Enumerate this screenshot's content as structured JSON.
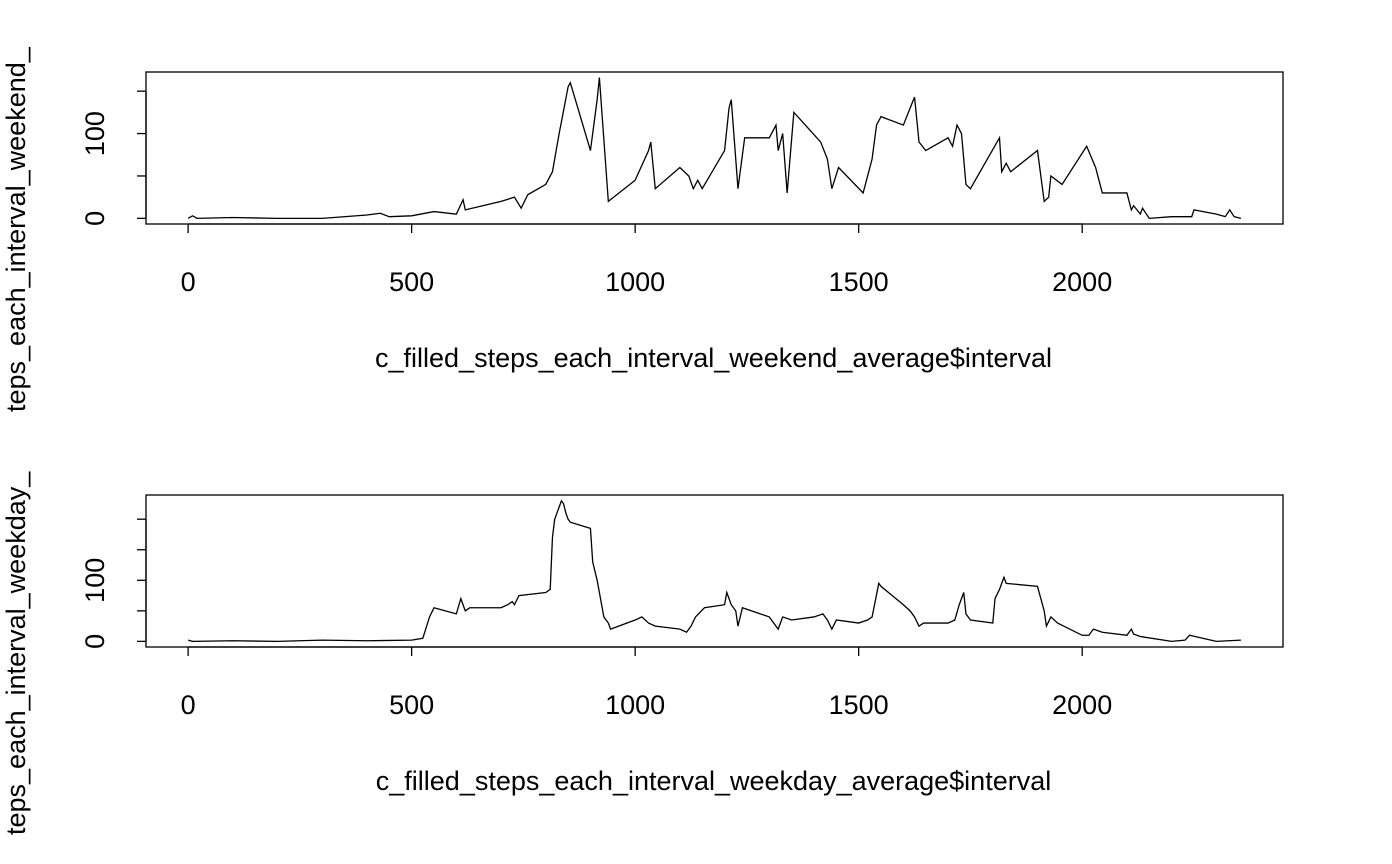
{
  "chart_data": [
    {
      "type": "line",
      "x_label": "c_filled_steps_each_interval_weekend_average$interval",
      "y_label": "teps_each_interval_weekend_",
      "x": [
        0,
        10,
        20,
        100,
        200,
        300,
        400,
        430,
        450,
        500,
        550,
        600,
        615,
        620,
        700,
        730,
        745,
        760,
        800,
        815,
        830,
        850,
        855,
        900,
        915,
        920,
        940,
        1000,
        1030,
        1035,
        1045,
        1100,
        1120,
        1130,
        1140,
        1150,
        1200,
        1210,
        1215,
        1230,
        1245,
        1300,
        1315,
        1320,
        1330,
        1340,
        1355,
        1415,
        1430,
        1440,
        1455,
        1510,
        1530,
        1540,
        1550,
        1600,
        1615,
        1625,
        1635,
        1650,
        1700,
        1710,
        1720,
        1730,
        1740,
        1750,
        1815,
        1820,
        1830,
        1840,
        1900,
        1915,
        1925,
        1930,
        1955,
        2010,
        2030,
        2045,
        2100,
        2110,
        2115,
        2130,
        2135,
        2150,
        2200,
        2245,
        2250,
        2300,
        2320,
        2330,
        2340,
        2355
      ],
      "series": [
        {
          "color": "#000000",
          "values": [
            0,
            3,
            0,
            1,
            0,
            0,
            4,
            6,
            2,
            3,
            8,
            5,
            22,
            10,
            20,
            25,
            12,
            28,
            40,
            55,
            100,
            155,
            160,
            80,
            140,
            166,
            20,
            45,
            80,
            90,
            35,
            60,
            50,
            35,
            45,
            35,
            80,
            130,
            140,
            35,
            95,
            95,
            110,
            80,
            100,
            30,
            125,
            90,
            70,
            35,
            60,
            30,
            70,
            110,
            120,
            110,
            130,
            143,
            90,
            80,
            95,
            85,
            110,
            100,
            40,
            35,
            95,
            55,
            65,
            55,
            80,
            20,
            25,
            50,
            40,
            85,
            60,
            30,
            30,
            10,
            15,
            5,
            12,
            0,
            2,
            2,
            10,
            5,
            2,
            10,
            2,
            0
          ]
        }
      ],
      "xlim": [
        -94.2,
        2449.2
      ],
      "ylim": [
        -6.64,
        172.6
      ],
      "xticks": [
        0,
        500,
        1000,
        1500,
        2000
      ],
      "yticks": [
        0,
        100
      ],
      "yticks_minor": [
        50,
        150
      ]
    },
    {
      "type": "line",
      "x_label": "c_filled_steps_each_interval_weekday_average$interval",
      "y_label": "teps_each_interval_weekday_",
      "x": [
        0,
        10,
        100,
        200,
        300,
        400,
        500,
        525,
        540,
        550,
        600,
        610,
        615,
        620,
        630,
        700,
        715,
        725,
        730,
        740,
        800,
        810,
        815,
        820,
        830,
        835,
        840,
        845,
        850,
        855,
        900,
        905,
        915,
        920,
        930,
        940,
        945,
        1000,
        1015,
        1030,
        1045,
        1100,
        1115,
        1125,
        1135,
        1155,
        1200,
        1205,
        1215,
        1225,
        1230,
        1240,
        1300,
        1320,
        1330,
        1350,
        1400,
        1420,
        1430,
        1440,
        1450,
        1500,
        1520,
        1530,
        1545,
        1550,
        1600,
        1615,
        1625,
        1635,
        1645,
        1700,
        1715,
        1725,
        1735,
        1740,
        1750,
        1800,
        1805,
        1815,
        1825,
        1830,
        1900,
        1915,
        1920,
        1930,
        1945,
        2000,
        2015,
        2025,
        2045,
        2100,
        2110,
        2115,
        2130,
        2200,
        2230,
        2240,
        2300,
        2355
      ],
      "series": [
        {
          "color": "#000000",
          "values": [
            2,
            0,
            1,
            0,
            2,
            1,
            2,
            5,
            40,
            55,
            45,
            70,
            60,
            50,
            55,
            55,
            60,
            65,
            60,
            75,
            80,
            85,
            170,
            200,
            220,
            230,
            225,
            210,
            200,
            195,
            185,
            130,
            100,
            80,
            40,
            30,
            20,
            35,
            40,
            30,
            25,
            20,
            15,
            25,
            40,
            55,
            60,
            80,
            60,
            50,
            25,
            55,
            40,
            20,
            40,
            35,
            40,
            45,
            35,
            20,
            35,
            30,
            35,
            40,
            95,
            90,
            60,
            50,
            40,
            25,
            30,
            30,
            35,
            60,
            80,
            45,
            35,
            30,
            70,
            85,
            105,
            95,
            90,
            50,
            25,
            40,
            30,
            10,
            10,
            20,
            15,
            10,
            20,
            12,
            8,
            0,
            2,
            10,
            0,
            2
          ]
        }
      ],
      "xlim": [
        -94.2,
        2449.2
      ],
      "ylim": [
        -9.2,
        239.6
      ],
      "xticks": [
        0,
        500,
        1000,
        1500,
        2000
      ],
      "yticks": [
        0,
        100
      ],
      "yticks_minor": [
        50,
        150,
        200
      ]
    }
  ]
}
